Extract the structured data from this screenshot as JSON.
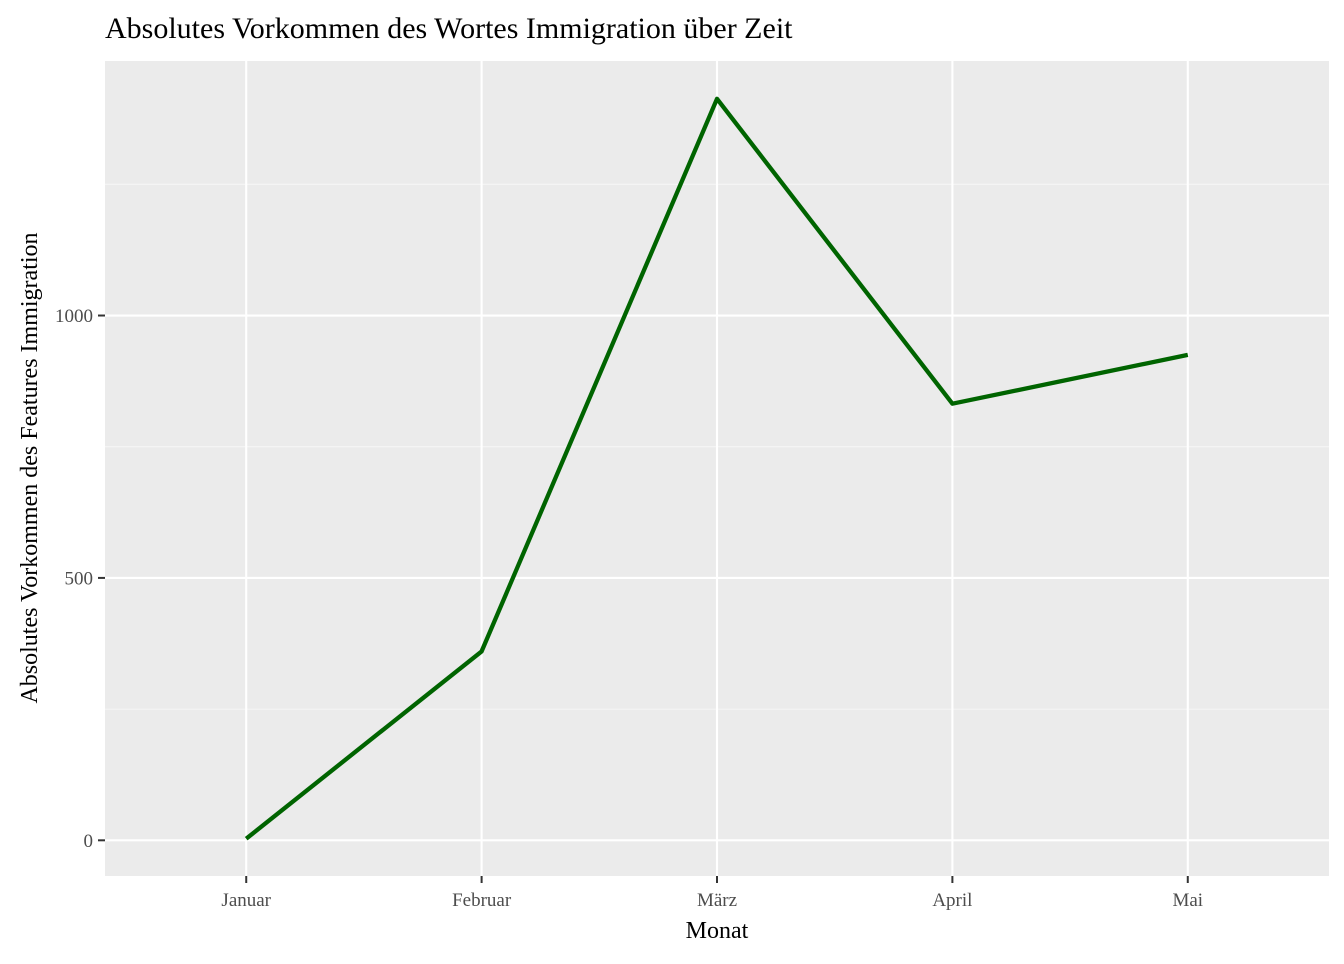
{
  "chart_data": {
    "type": "line",
    "title": "Absolutes Vorkommen des Wortes Immigration über Zeit",
    "xlabel": "Monat",
    "ylabel": "Absolutes Vorkommen des Features Immigration",
    "categories": [
      "Januar",
      "Februar",
      "März",
      "April",
      "Mai"
    ],
    "series": [
      {
        "values": [
          3,
          360,
          1413,
          832,
          925
        ],
        "color": "#006400"
      }
    ],
    "ylim": [
      -68,
      1485
    ],
    "yticks": [
      0,
      500,
      1000
    ],
    "ytick_labels": [
      "0",
      "500",
      "1000"
    ],
    "grid": true,
    "legend": "none",
    "colors": {
      "panel_background": "#ebebeb",
      "grid_major": "#ffffff",
      "grid_minor": "#f5f5f5",
      "tick_label": "#4d4d4d",
      "line": "#006400"
    }
  }
}
